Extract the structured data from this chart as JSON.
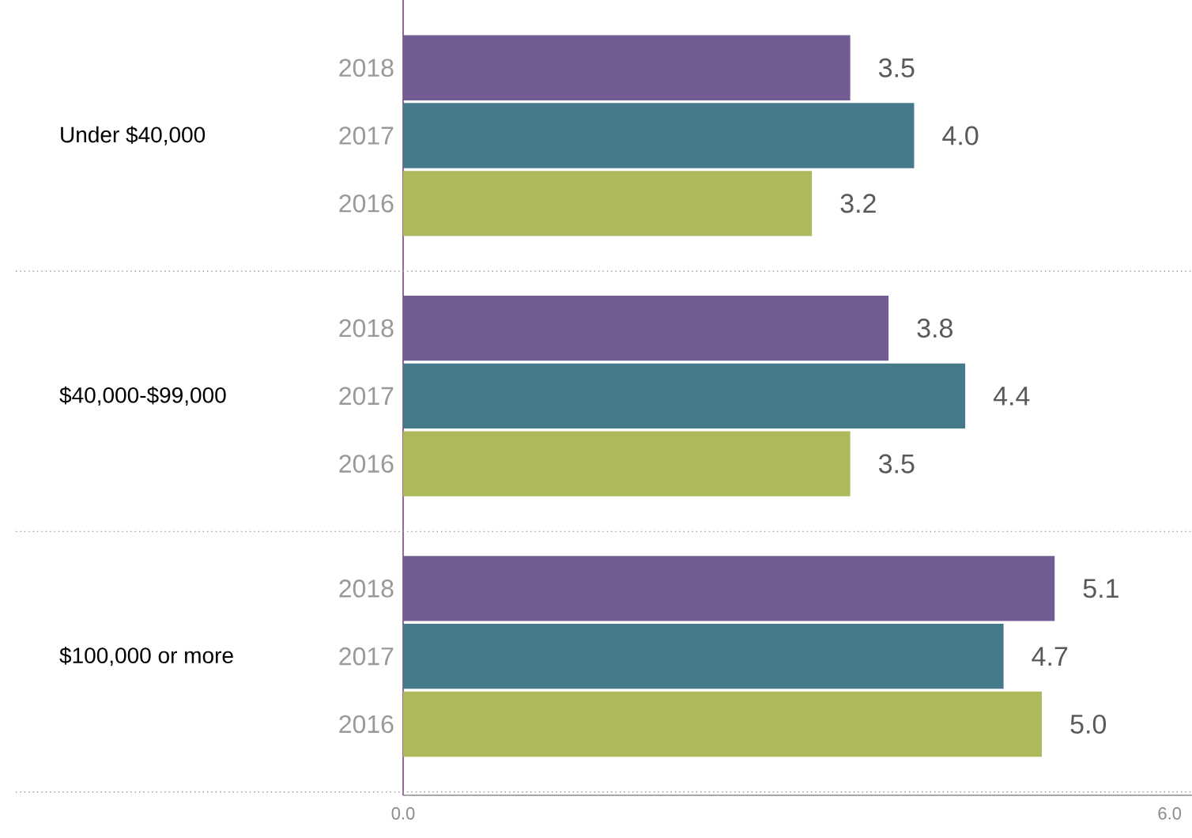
{
  "chart_data": {
    "type": "bar",
    "orientation": "horizontal",
    "categories": [
      "Under $40,000",
      "$40,000-$99,000",
      "$100,000 or more"
    ],
    "series": [
      {
        "name": "2018",
        "color": "#735c94",
        "values": [
          3.5,
          3.8,
          5.1
        ],
        "value_labels": [
          "3.5",
          "3.8",
          "5.1"
        ]
      },
      {
        "name": "2017",
        "color": "#467a8a",
        "values": [
          4.0,
          4.4,
          4.7
        ],
        "value_labels": [
          "4.0",
          "4.4",
          "4.7"
        ]
      },
      {
        "name": "2016",
        "color": "#adb95c",
        "values": [
          3.2,
          3.5,
          5.0
        ],
        "value_labels": [
          "3.2",
          "3.5",
          "5.0"
        ]
      }
    ],
    "xlim": [
      0,
      6.2
    ],
    "xticks": [
      {
        "value": 0,
        "label": "0.0"
      },
      {
        "value": 6,
        "label": "6.0"
      }
    ],
    "grid": "y"
  }
}
